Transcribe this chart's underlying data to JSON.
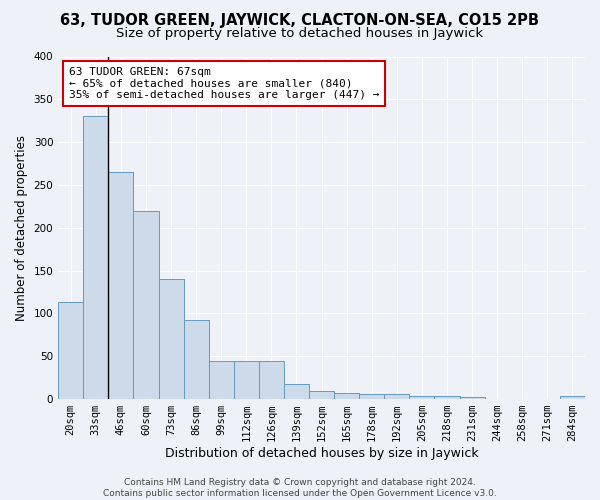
{
  "title": "63, TUDOR GREEN, JAYWICK, CLACTON-ON-SEA, CO15 2PB",
  "subtitle": "Size of property relative to detached houses in Jaywick",
  "xlabel": "Distribution of detached houses by size in Jaywick",
  "ylabel": "Number of detached properties",
  "bar_color": "#ccdaea",
  "bar_edge_color": "#6699bb",
  "background_color": "#eef2f8",
  "grid_color": "#ffffff",
  "categories": [
    "20sqm",
    "33sqm",
    "46sqm",
    "60sqm",
    "73sqm",
    "86sqm",
    "99sqm",
    "112sqm",
    "126sqm",
    "139sqm",
    "152sqm",
    "165sqm",
    "178sqm",
    "192sqm",
    "205sqm",
    "218sqm",
    "231sqm",
    "244sqm",
    "258sqm",
    "271sqm",
    "284sqm"
  ],
  "values": [
    113,
    330,
    265,
    220,
    140,
    92,
    45,
    44,
    44,
    18,
    9,
    7,
    6,
    6,
    4,
    4,
    3,
    0,
    0,
    0,
    4
  ],
  "ylim": [
    0,
    400
  ],
  "annotation_line1": "63 TUDOR GREEN: 67sqm",
  "annotation_line2": "← 65% of detached houses are smaller (840)",
  "annotation_line3": "35% of semi-detached houses are larger (447) →",
  "vline_x": 1.5,
  "footer": "Contains HM Land Registry data © Crown copyright and database right 2024.\nContains public sector information licensed under the Open Government Licence v3.0.",
  "title_fontsize": 10.5,
  "subtitle_fontsize": 9.5,
  "xlabel_fontsize": 9,
  "ylabel_fontsize": 8.5,
  "tick_fontsize": 7.5,
  "annotation_fontsize": 8,
  "footer_fontsize": 6.5
}
